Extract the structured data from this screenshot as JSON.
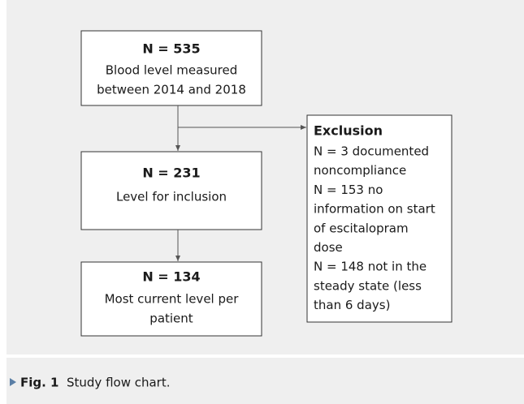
{
  "nodes": [
    {
      "title": "N = 535",
      "lines": [
        "Blood level measured",
        "between 2014 and 2018"
      ]
    },
    {
      "title": "N = 231",
      "lines": [
        "Level for inclusion"
      ]
    },
    {
      "title": "N = 134",
      "lines": [
        "Most current level per",
        "patient"
      ]
    }
  ],
  "exclusion": {
    "title": "Exclusion",
    "lines": [
      "N = 3 documented",
      "noncompliance",
      "N = 153 no",
      "information on start",
      "of escitalopram",
      "dose",
      "N = 148 not in the",
      "steady state (less",
      "than 6 days)"
    ]
  },
  "caption": {
    "label": "Fig. 1",
    "text": "Study flow chart."
  }
}
